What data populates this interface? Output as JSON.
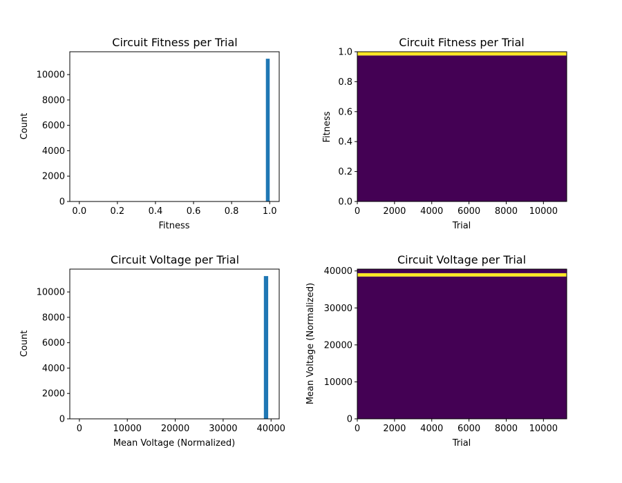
{
  "colors": {
    "bar": "#1f77b4",
    "heat_low": "#440154",
    "heat_high": "#fde725",
    "axis": "#000000"
  },
  "chart_data": [
    {
      "type": "bar",
      "title": "Circuit Fitness per Trial",
      "xlabel": "Fitness",
      "ylabel": "Count",
      "xlim": [
        -0.05,
        1.05
      ],
      "ylim": [
        0,
        11800
      ],
      "xticks": [
        0.0,
        0.2,
        0.4,
        0.6,
        0.8,
        1.0
      ],
      "xtick_labels": [
        "0.0",
        "0.2",
        "0.4",
        "0.6",
        "0.8",
        "1.0"
      ],
      "yticks": [
        0,
        2000,
        4000,
        6000,
        8000,
        10000
      ],
      "ytick_labels": [
        "0",
        "2000",
        "4000",
        "6000",
        "8000",
        "10000"
      ],
      "bins": [
        {
          "x0": 0.98,
          "x1": 1.0,
          "value": 11250
        }
      ]
    },
    {
      "type": "heatmap",
      "title": "Circuit Fitness per Trial",
      "xlabel": "Trial",
      "ylabel": "Fitness",
      "xlim": [
        0,
        11250
      ],
      "ylim": [
        0.0,
        1.0
      ],
      "xticks": [
        0,
        2000,
        4000,
        6000,
        8000,
        10000
      ],
      "xtick_labels": [
        "0",
        "2000",
        "4000",
        "6000",
        "8000",
        "10000"
      ],
      "yticks": [
        0.0,
        0.2,
        0.4,
        0.6,
        0.8,
        1.0
      ],
      "ytick_labels": [
        "0.0",
        "0.2",
        "0.4",
        "0.6",
        "0.8",
        "1.0"
      ],
      "bands": [
        {
          "y0": 0.0,
          "y1": 0.975,
          "level": "low"
        },
        {
          "y0": 0.975,
          "y1": 1.0,
          "level": "high"
        }
      ]
    },
    {
      "type": "bar",
      "title": "Circuit Voltage per Trial",
      "xlabel": "Mean Voltage (Normalized)",
      "ylabel": "Count",
      "xlim": [
        -2000,
        41700
      ],
      "ylim": [
        0,
        11800
      ],
      "xticks": [
        0,
        10000,
        20000,
        30000,
        40000
      ],
      "xtick_labels": [
        "0",
        "10000",
        "20000",
        "30000",
        "40000"
      ],
      "yticks": [
        0,
        2000,
        4000,
        6000,
        8000,
        10000
      ],
      "ytick_labels": [
        "0",
        "2000",
        "4000",
        "6000",
        "8000",
        "10000"
      ],
      "bins": [
        {
          "x0": 38500,
          "x1": 39400,
          "value": 11250
        }
      ]
    },
    {
      "type": "heatmap",
      "title": "Circuit Voltage per Trial",
      "xlabel": "Trial",
      "ylabel": "Mean Voltage (Normalized)",
      "xlim": [
        0,
        11250
      ],
      "ylim": [
        0,
        40500
      ],
      "xticks": [
        0,
        2000,
        4000,
        6000,
        8000,
        10000
      ],
      "xtick_labels": [
        "0",
        "2000",
        "4000",
        "6000",
        "8000",
        "10000"
      ],
      "yticks": [
        0,
        10000,
        20000,
        30000,
        40000
      ],
      "ytick_labels": [
        "0",
        "10000",
        "20000",
        "30000",
        "40000"
      ],
      "bands": [
        {
          "y0": 0,
          "y1": 38500,
          "level": "low"
        },
        {
          "y0": 38500,
          "y1": 39400,
          "level": "high"
        },
        {
          "y0": 39400,
          "y1": 40500,
          "level": "low"
        }
      ]
    }
  ]
}
